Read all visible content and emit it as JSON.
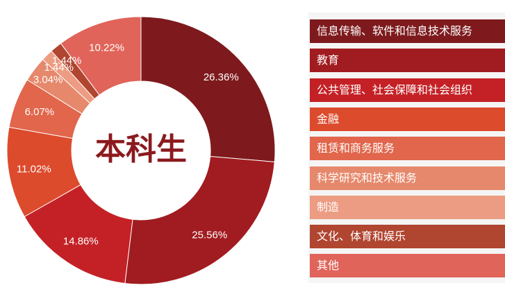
{
  "chart_data": {
    "type": "pie",
    "title": "本科生",
    "categories": [
      "信息传输、软件和信息技术服务",
      "教育",
      "公共管理、社会保障和社会组织",
      "金融",
      "租赁和商务服务",
      "科学研究和技术服务",
      "制造",
      "文化、体育和娱乐",
      "其他"
    ],
    "values": [
      26.36,
      25.56,
      14.86,
      11.02,
      6.07,
      3.04,
      1.44,
      1.44,
      10.22
    ],
    "labels": [
      "26.36%",
      "25.56%",
      "14.86%",
      "11.02%",
      "6.07%",
      "3.04%",
      "1.44%",
      "1.44%",
      "10.22%"
    ],
    "colors": [
      "#7e1a1d",
      "#a11c20",
      "#c42126",
      "#dd4b2d",
      "#e1664c",
      "#e6886b",
      "#ec9c82",
      "#b04530",
      "#e0645a"
    ],
    "legend_position": "right"
  }
}
